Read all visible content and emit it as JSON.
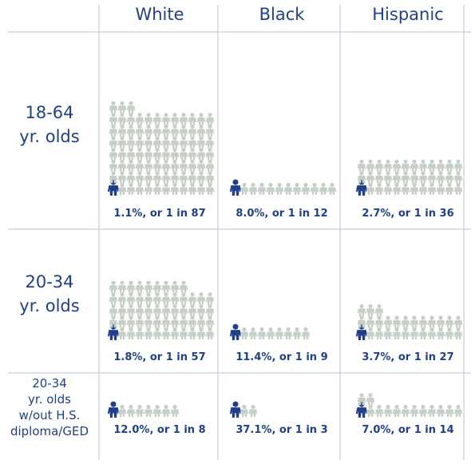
{
  "chart_data": {
    "type": "pictograph",
    "columns": [
      "White",
      "Black",
      "Hispanic"
    ],
    "rows": [
      {
        "label_lines": [
          "18-64",
          "yr. olds"
        ],
        "cells": [
          {
            "percent": 1.1,
            "one_in": 87,
            "label": "1.1%, or 1 in 87"
          },
          {
            "percent": 8.0,
            "one_in": 12,
            "label": "8.0%, or 1 in 12"
          },
          {
            "percent": 2.7,
            "one_in": 36,
            "label": "2.7%, or 1 in 36"
          }
        ]
      },
      {
        "label_lines": [
          "20-34",
          "yr. olds"
        ],
        "cells": [
          {
            "percent": 1.8,
            "one_in": 57,
            "label": "1.8%, or 1 in 57"
          },
          {
            "percent": 11.4,
            "one_in": 9,
            "label": "11.4%, or 1 in 9"
          },
          {
            "percent": 3.7,
            "one_in": 27,
            "label": "3.7%, or 1 in 27"
          }
        ]
      },
      {
        "label_lines": [
          "20-34",
          "yr. olds",
          "w/out H.S.",
          "diploma/GED"
        ],
        "cells": [
          {
            "percent": 12.0,
            "one_in": 8,
            "label": "12.0%, or 1 in 8"
          },
          {
            "percent": 37.1,
            "one_in": 3,
            "label": "37.1%, or 1 in 3"
          },
          {
            "percent": 7.0,
            "one_in": 14,
            "label": "7.0%, or 1 in 14"
          }
        ]
      }
    ],
    "colors": {
      "highlight": "#1f3f8c",
      "other": "#c6cfc6",
      "text": "#1f3f8c",
      "grid": "#b9c2d3"
    }
  }
}
